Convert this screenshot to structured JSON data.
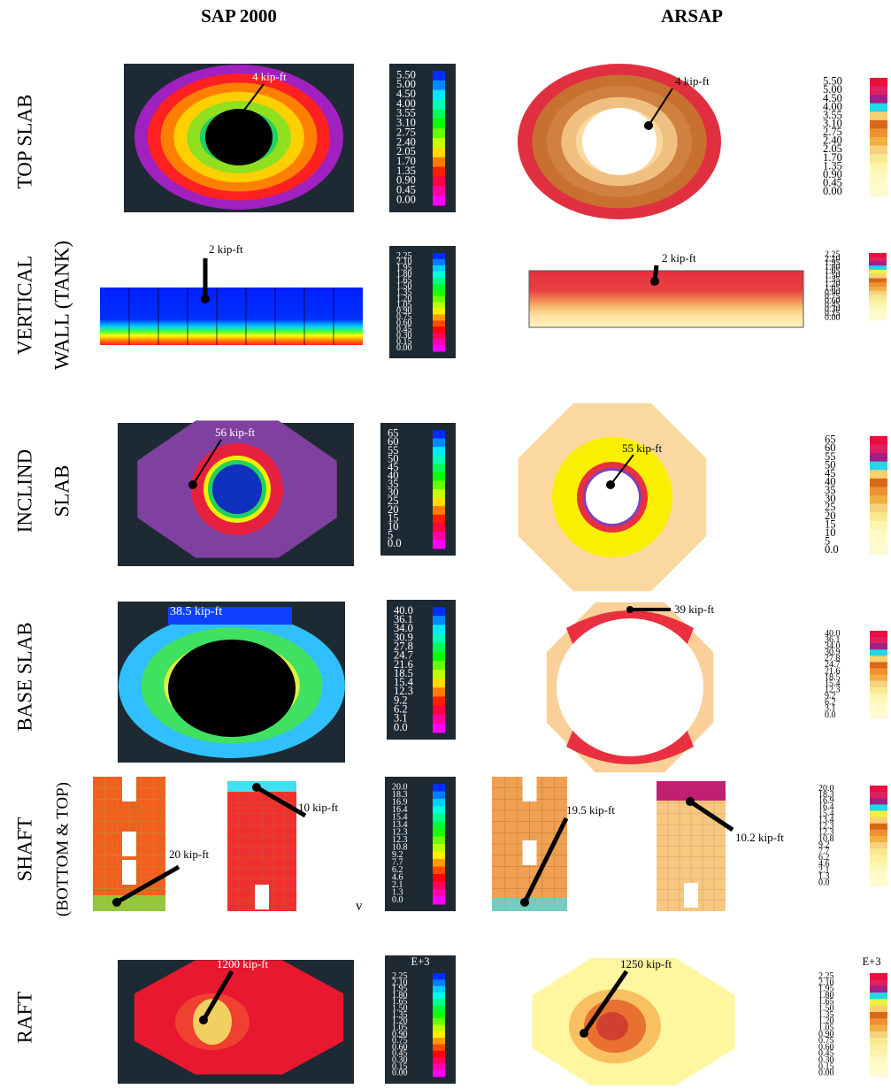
{
  "columns": [
    "SAP 2000",
    "ARSAP"
  ],
  "rows": [
    {
      "label": [
        "TOP SLAB"
      ],
      "legend": [
        "5.50",
        "5.00",
        "4.50",
        "4.00",
        "3.55",
        "3.10",
        "2.75",
        "2.40",
        "2.05",
        "1.70",
        "1.35",
        "0.90",
        "0.45",
        "0.00"
      ],
      "sap": [
        "4 kip-ft"
      ],
      "arsap": [
        "4 kip-ft"
      ]
    },
    {
      "label": [
        "VERTICAL",
        "WALL (TANK)"
      ],
      "legend": [
        "2.25",
        "2.10",
        "1.95",
        "1.80",
        "1.65",
        "1.50",
        "1.35",
        "1.20",
        "1.05",
        "0.90",
        "0.75",
        "0.60",
        "0.45",
        "0.30",
        "0.15",
        "0.00"
      ],
      "sap": [
        "2 kip-ft"
      ],
      "arsap": [
        "2 kip-ft"
      ]
    },
    {
      "label": [
        "INCLIND",
        "SLAB"
      ],
      "legend": [
        "65",
        "60",
        "55",
        "50",
        "45",
        "40",
        "35",
        "30",
        "25",
        "20",
        "15",
        "10",
        "5",
        "0.0"
      ],
      "sap": [
        "56 kip-ft"
      ],
      "arsap": [
        "55 kip-ft"
      ]
    },
    {
      "label": [
        "BASE SLAB"
      ],
      "legend": [
        "40.0",
        "36.1",
        "34.0",
        "30.9",
        "27.8",
        "24.7",
        "21.6",
        "18.5",
        "15.4",
        "12.3",
        "9.2",
        "6.2",
        "3.1",
        "0.0"
      ],
      "sap": [
        "38.5 kip-ft"
      ],
      "arsap": [
        "39 kip-ft"
      ]
    },
    {
      "label": [
        "SHAFT",
        "(BOTTOM & TOP)"
      ],
      "legend": [
        "20.0",
        "18.3",
        "16.9",
        "16.4",
        "15.4",
        "13.4",
        "12.3",
        "12.3",
        "10.8",
        "9.2",
        "7.7",
        "6.2",
        "4.6",
        "2.1",
        "1.3",
        "0.0"
      ],
      "sap": [
        "20 kip-ft",
        "10 kip-ft"
      ],
      "arsap": [
        "19.5 kip-ft",
        "10.2 kip-ft"
      ],
      "note": "v"
    },
    {
      "label": [
        "RAFT"
      ],
      "legend_header": "E+3",
      "legend": [
        "2.25",
        "2.10",
        "1.95",
        "1.80",
        "1.65",
        "1.50",
        "1.35",
        "1.20",
        "1.05",
        "0.90",
        "0.75",
        "0.60",
        "0.45",
        "0.30",
        "0.15",
        "0.00"
      ],
      "sap": [
        "1200 kip-ft"
      ],
      "arsap": [
        "1250 kip-ft"
      ]
    }
  ]
}
